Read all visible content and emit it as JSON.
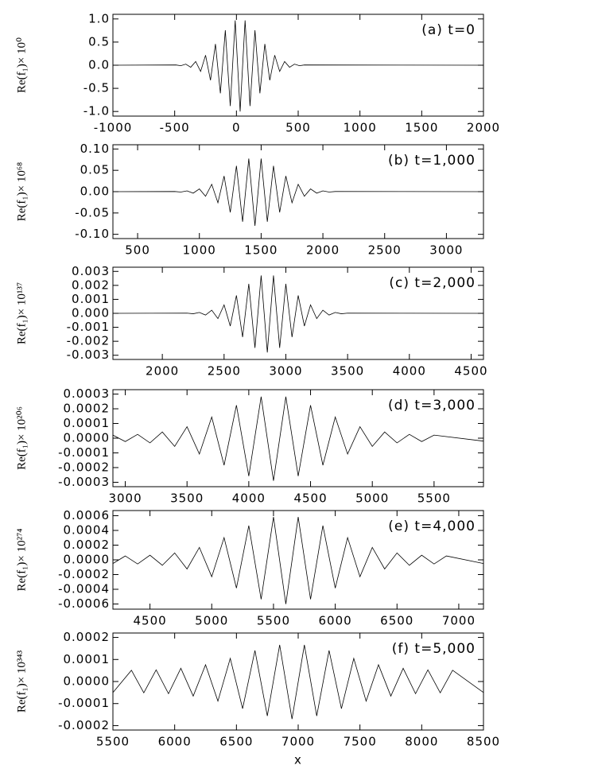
{
  "chart_data": [
    {
      "type": "line",
      "annotation": "(a)  t=0",
      "ylabel": "Re(f₁)× 10⁰",
      "color": "#000000",
      "xlim": [
        -1000,
        2000
      ],
      "ylim": [
        -1.1,
        1.1
      ],
      "xticks": [
        -1000,
        -500,
        0,
        500,
        1000,
        1500,
        2000
      ],
      "yticks": [
        {
          "value": -1,
          "label": "-1.0"
        },
        {
          "value": -0.5,
          "label": "-0.5"
        },
        {
          "value": 0,
          "label": "0.0"
        },
        0.5,
        {
          "value": 1,
          "label": "1.0"
        }
      ],
      "x": [
        -1000,
        -490,
        -450,
        -410,
        -370,
        -330,
        -290,
        -250,
        -210,
        -170,
        -130,
        -90,
        -50,
        -10,
        30,
        70,
        110,
        150,
        190,
        230,
        270,
        310,
        350,
        390,
        430,
        470,
        510,
        550,
        2000
      ],
      "values": [
        0,
        0.005,
        -0.011,
        0.023,
        -0.044,
        0.08,
        -0.135,
        0.216,
        -0.325,
        0.458,
        -0.607,
        0.755,
        -0.882,
        0.969,
        -1.0,
        0.969,
        -0.882,
        0.755,
        -0.607,
        0.458,
        -0.325,
        0.216,
        -0.135,
        0.08,
        -0.044,
        0.023,
        -0.011,
        0.005,
        0
      ]
    },
    {
      "type": "line",
      "annotation": "(b)  t=1,000",
      "ylabel": "Re(f₁)× 10⁶⁸",
      "color": "#000000",
      "xlim": [
        300,
        3300
      ],
      "ylim": [
        -0.11,
        0.11
      ],
      "xticks": [
        500,
        1000,
        1500,
        2000,
        2500,
        3000
      ],
      "yticks": [
        {
          "value": -0.1,
          "label": "-0.10"
        },
        -0.05,
        {
          "value": 0,
          "label": "0.00"
        },
        0.05,
        {
          "value": 0.1,
          "label": "0.10"
        }
      ],
      "x": [
        300,
        800,
        850,
        900,
        950,
        1000,
        1050,
        1100,
        1150,
        1200,
        1250,
        1300,
        1350,
        1400,
        1450,
        1500,
        1550,
        1600,
        1650,
        1700,
        1750,
        1800,
        1850,
        1900,
        1950,
        2000,
        2050,
        2100,
        3300
      ],
      "values": [
        0,
        0.0004,
        -0.0009,
        0.0018,
        -0.0035,
        0.0064,
        -0.0108,
        0.0173,
        -0.026,
        0.0366,
        -0.0486,
        0.0604,
        -0.0706,
        0.0775,
        -0.08,
        0.0775,
        -0.0706,
        0.0604,
        -0.0486,
        0.0366,
        -0.026,
        0.0173,
        -0.0108,
        0.0064,
        -0.0035,
        0.0018,
        -0.0009,
        0.0004,
        0
      ]
    },
    {
      "type": "line",
      "annotation": "(c)  t=2,000",
      "ylabel": "Re(f₁)× 10¹³⁷",
      "color": "#000000",
      "xlim": [
        1600,
        4600
      ],
      "ylim": [
        -0.0033,
        0.0033
      ],
      "xticks": [
        2000,
        2500,
        3000,
        3500,
        4000,
        4500
      ],
      "yticks": [
        -0.003,
        -0.002,
        -0.001,
        {
          "value": 0,
          "label": "0.000"
        },
        0.001,
        0.002,
        0.003
      ],
      "x": [
        1600,
        2200,
        2250,
        2300,
        2350,
        2400,
        2450,
        2500,
        2550,
        2600,
        2650,
        2700,
        2750,
        2800,
        2850,
        2900,
        2950,
        3000,
        3050,
        3100,
        3150,
        3200,
        3250,
        3300,
        3350,
        3400,
        3450,
        3500,
        4600
      ],
      "values": [
        0,
        1.4e-05,
        -3.1e-05,
        6.4e-05,
        -0.000123,
        0.000224,
        -0.000378,
        0.000605,
        -0.00091,
        0.00128,
        -0.0017,
        0.00211,
        -0.00247,
        0.00271,
        -0.0028,
        0.00271,
        -0.00247,
        0.00211,
        -0.0017,
        0.00128,
        -0.00091,
        0.000605,
        -0.000378,
        0.000224,
        -0.000123,
        6.4e-05,
        -3.1e-05,
        1.4e-05,
        0
      ]
    },
    {
      "type": "line",
      "annotation": "(d)  t=3,000",
      "ylabel": "Re(f₁)× 10²⁰⁶",
      "color": "#000000",
      "xlim": [
        2900,
        5900
      ],
      "ylim": [
        -0.00033,
        0.00033
      ],
      "xticks": [
        3000,
        3500,
        4000,
        4500,
        5000,
        5500
      ],
      "yticks": [
        -0.0003,
        -0.0002,
        -0.0001,
        {
          "value": 0,
          "label": "0.0000"
        },
        0.0001,
        0.0002,
        0.0003
      ],
      "x": [
        2900,
        3000,
        3100,
        3200,
        3300,
        3400,
        3500,
        3600,
        3700,
        3800,
        3900,
        4000,
        4100,
        4200,
        4300,
        4400,
        4500,
        4600,
        4700,
        4800,
        4900,
        5000,
        5100,
        5200,
        5300,
        5400,
        5500,
        5900
      ],
      "values": [
        2.1e-05,
        -2.3e-05,
        2.6e-05,
        -3.2e-05,
        4.2e-05,
        -5.6e-05,
        7.8e-05,
        -0.000108,
        0.000144,
        -0.000184,
        0.000224,
        -0.000258,
        0.000282,
        -0.00029,
        0.000282,
        -0.000258,
        0.000224,
        -0.000184,
        0.000144,
        -0.000108,
        7.8e-05,
        -5.6e-05,
        4.2e-05,
        -3.2e-05,
        2.6e-05,
        -2.3e-05,
        2.1e-05,
        -2e-05
      ]
    },
    {
      "type": "line",
      "annotation": "(e)  t=4,000",
      "ylabel": "Re(f₁)× 10²⁷⁴",
      "color": "#000000",
      "xlim": [
        4200,
        7200
      ],
      "ylim": [
        -0.00067,
        0.00067
      ],
      "xticks": [
        4500,
        5000,
        5500,
        6000,
        6500,
        7000
      ],
      "yticks": [
        -0.0006,
        -0.0004,
        -0.0002,
        {
          "value": 0,
          "label": "0.0000"
        },
        0.0002,
        0.0004,
        0.0006
      ],
      "x": [
        4200,
        4300,
        4400,
        4500,
        4600,
        4700,
        4800,
        4900,
        5000,
        5100,
        5200,
        5300,
        5400,
        5500,
        5600,
        5700,
        5800,
        5900,
        6000,
        6100,
        6200,
        6300,
        6400,
        6500,
        6600,
        6700,
        6800,
        6900,
        7200
      ],
      "values": [
        -5e-05,
        5.3e-05,
        -5.6e-05,
        6.3e-05,
        -7.4e-05,
        9.4e-05,
        -0.000124,
        0.000169,
        -0.000229,
        0.000302,
        -0.000384,
        0.000465,
        -0.000535,
        0.000583,
        -0.0006,
        0.000583,
        -0.000535,
        0.000465,
        -0.000384,
        0.000302,
        -0.000229,
        0.000169,
        -0.000124,
        9.4e-05,
        -7.4e-05,
        6.3e-05,
        -5.6e-05,
        5.3e-05,
        -5e-05
      ]
    },
    {
      "type": "line",
      "annotation": "(f)  t=5,000",
      "ylabel": "Re(f₁)× 10³⁴³",
      "xlabel": "x",
      "color": "#000000",
      "xlim": [
        5500,
        8500
      ],
      "ylim": [
        -0.00022,
        0.00022
      ],
      "xticks": [
        5500,
        6000,
        6500,
        7000,
        7500,
        8000,
        8500
      ],
      "yticks": [
        -0.0002,
        -0.0001,
        {
          "value": 0,
          "label": "0.0000"
        },
        0.0001,
        0.0002
      ],
      "x": [
        5500,
        5650,
        5750,
        5850,
        5950,
        6050,
        6150,
        6250,
        6350,
        6450,
        6550,
        6650,
        6750,
        6850,
        6950,
        7050,
        7150,
        7250,
        7350,
        7450,
        7550,
        7650,
        7750,
        7850,
        7950,
        8050,
        8150,
        8250,
        8500
      ],
      "values": [
        -5e-05,
        5.1e-05,
        -5.1e-05,
        5.3e-05,
        -5.5e-05,
        6e-05,
        -6.6e-05,
        7.6e-05,
        -8.9e-05,
        0.000105,
        -0.000123,
        0.000141,
        -0.000156,
        0.000166,
        -0.00017,
        0.000166,
        -0.000156,
        0.000141,
        -0.000123,
        0.000105,
        -8.9e-05,
        7.6e-05,
        -6.6e-05,
        6e-05,
        -5.5e-05,
        5.3e-05,
        -5.1e-05,
        5.1e-05,
        -5e-05
      ]
    }
  ]
}
